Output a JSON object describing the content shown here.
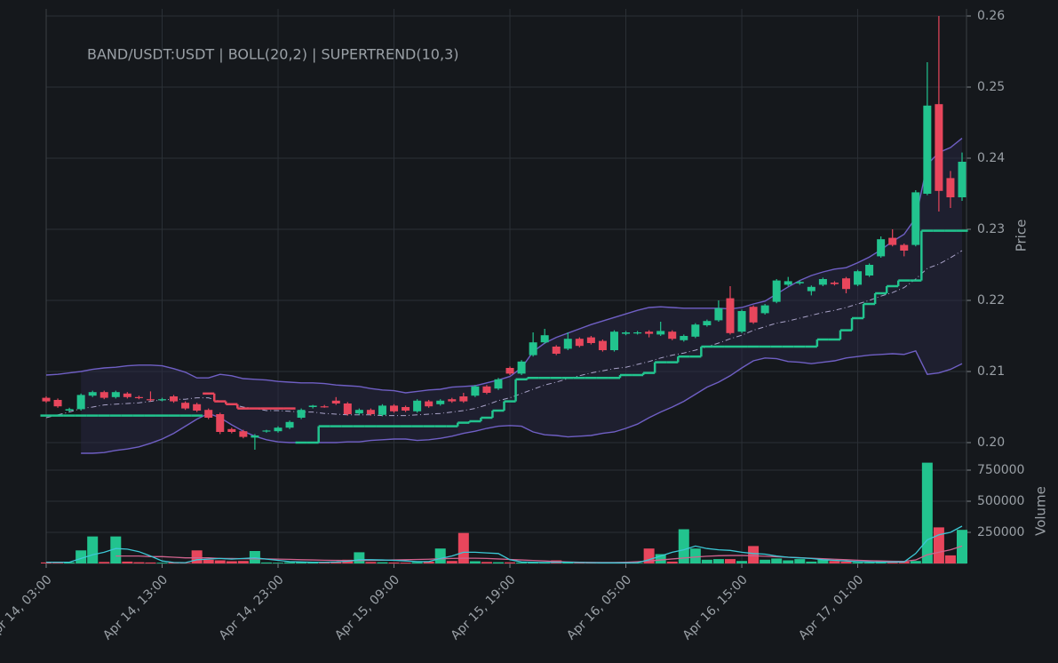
{
  "chart_data": {
    "type": "candlestick",
    "title": "BAND/USDT:USDT | BOLL(20,2) | SUPERTREND(10,3)",
    "y_label": "Price",
    "y2_label": "Volume",
    "categories": [
      "Apr 14, 03:00",
      null,
      null,
      null,
      null,
      null,
      null,
      null,
      null,
      null,
      "Apr 14, 13:00",
      null,
      null,
      null,
      null,
      null,
      null,
      null,
      null,
      null,
      "Apr 14, 23:00",
      null,
      null,
      null,
      null,
      null,
      null,
      null,
      null,
      null,
      "Apr 15, 09:00",
      null,
      null,
      null,
      null,
      null,
      null,
      null,
      null,
      null,
      "Apr 15, 19:00",
      null,
      null,
      null,
      null,
      null,
      null,
      null,
      null,
      null,
      "Apr 16, 05:00",
      null,
      null,
      null,
      null,
      null,
      null,
      null,
      null,
      null,
      "Apr 16, 15:00",
      null,
      null,
      null,
      null,
      null,
      null,
      null,
      null,
      null,
      "Apr 17, 01:00",
      null,
      null,
      null,
      null,
      null,
      null,
      null,
      null,
      null
    ],
    "open": [
      0.2063,
      0.206,
      0.2045,
      0.2047,
      0.2066,
      0.2071,
      0.2064,
      0.2069,
      0.2064,
      0.2061,
      0.206,
      0.2065,
      0.2056,
      0.2054,
      0.2046,
      0.204,
      0.2019,
      0.2016,
      0.2007,
      0.2016,
      0.2016,
      0.2021,
      0.2035,
      0.205,
      0.2051,
      0.2059,
      0.2055,
      0.2041,
      0.2046,
      0.2039,
      0.2052,
      0.205,
      0.2044,
      0.2058,
      0.2054,
      0.2061,
      0.2065,
      0.2066,
      0.2079,
      0.2076,
      0.2105,
      0.2097,
      0.2123,
      0.2141,
      0.2135,
      0.2132,
      0.2146,
      0.2148,
      0.2143,
      0.213,
      0.2153,
      0.2154,
      0.2156,
      0.2152,
      0.2156,
      0.2144,
      0.2149,
      0.2165,
      0.2172,
      0.2203,
      0.2156,
      0.2191,
      0.2182,
      0.2198,
      0.2222,
      0.2224,
      0.2213,
      0.2222,
      0.2225,
      0.2231,
      0.2222,
      0.2235,
      0.2262,
      0.2288,
      0.2278,
      0.2278,
      0.235,
      0.2476,
      0.2372,
      0.2345
    ],
    "high": [
      0.2065,
      0.2062,
      0.2049,
      0.2069,
      0.2073,
      0.2073,
      0.2073,
      0.2071,
      0.2066,
      0.2072,
      0.2063,
      0.2067,
      0.2058,
      0.2056,
      0.2048,
      0.2042,
      0.2021,
      0.2018,
      0.2012,
      0.2018,
      0.2023,
      0.2031,
      0.2048,
      0.2053,
      0.2053,
      0.2064,
      0.2057,
      0.2048,
      0.2048,
      0.2054,
      0.2054,
      0.2052,
      0.2061,
      0.206,
      0.2061,
      0.2063,
      0.207,
      0.2081,
      0.2081,
      0.2091,
      0.2107,
      0.2116,
      0.2155,
      0.216,
      0.2137,
      0.2155,
      0.2148,
      0.215,
      0.2145,
      0.2158,
      0.2157,
      0.2157,
      0.2158,
      0.217,
      0.2158,
      0.2152,
      0.2168,
      0.2173,
      0.22,
      0.222,
      0.2187,
      0.2193,
      0.2195,
      0.223,
      0.2233,
      0.2228,
      0.2221,
      0.2232,
      0.2227,
      0.2233,
      0.2243,
      0.2252,
      0.229,
      0.23,
      0.228,
      0.2355,
      0.2535,
      0.26,
      0.2382,
      0.2408
    ],
    "low": [
      0.2056,
      0.2049,
      0.2043,
      0.2045,
      0.2064,
      0.2061,
      0.2062,
      0.2062,
      0.2061,
      0.2058,
      0.2058,
      0.2056,
      0.2046,
      0.2043,
      0.2033,
      0.2012,
      0.2013,
      0.2006,
      0.199,
      0.2014,
      0.2014,
      0.2019,
      0.2033,
      0.2048,
      0.2049,
      0.2053,
      0.2038,
      0.2039,
      0.2038,
      0.2037,
      0.2042,
      0.2043,
      0.2042,
      0.2049,
      0.2052,
      0.2056,
      0.2056,
      0.2064,
      0.2068,
      0.2074,
      0.2095,
      0.2095,
      0.2121,
      0.2139,
      0.2123,
      0.213,
      0.2134,
      0.2138,
      0.2128,
      0.2128,
      0.2151,
      0.2152,
      0.2148,
      0.215,
      0.2144,
      0.2142,
      0.2147,
      0.2163,
      0.217,
      0.2152,
      0.2154,
      0.2167,
      0.218,
      0.2196,
      0.222,
      0.2222,
      0.2207,
      0.222,
      0.2221,
      0.221,
      0.222,
      0.2233,
      0.226,
      0.2276,
      0.2262,
      0.2276,
      0.2348,
      0.2325,
      0.233,
      0.234
    ],
    "close": [
      0.2058,
      0.2051,
      0.2047,
      0.2067,
      0.2071,
      0.2063,
      0.2071,
      0.2064,
      0.2063,
      0.206,
      0.2061,
      0.2058,
      0.2048,
      0.2045,
      0.2035,
      0.2015,
      0.2015,
      0.2008,
      0.201,
      0.2017,
      0.2021,
      0.2029,
      0.2046,
      0.2052,
      0.205,
      0.2055,
      0.204,
      0.2046,
      0.204,
      0.2052,
      0.2044,
      0.2045,
      0.2059,
      0.2051,
      0.2059,
      0.2058,
      0.2058,
      0.2079,
      0.207,
      0.2089,
      0.2097,
      0.2114,
      0.2141,
      0.2151,
      0.2125,
      0.2146,
      0.2136,
      0.214,
      0.213,
      0.2156,
      0.2155,
      0.2155,
      0.2153,
      0.2157,
      0.2146,
      0.215,
      0.2166,
      0.2171,
      0.2189,
      0.2154,
      0.2185,
      0.2169,
      0.2193,
      0.2228,
      0.2227,
      0.2226,
      0.2219,
      0.223,
      0.2223,
      0.2216,
      0.2241,
      0.225,
      0.2286,
      0.2278,
      0.227,
      0.2352,
      0.2474,
      0.2354,
      0.2345,
      0.2395
    ],
    "up_color": "#22c38e",
    "down_color": "#e8465c",
    "ylim": [
      0.19825,
      0.261
    ],
    "yticks": [
      {
        "value": 0.2,
        "label": "0.20"
      },
      0.21,
      0.22,
      0.23,
      0.24,
      0.25,
      0.26
    ],
    "grid": true,
    "bollinger": {
      "color": "#6f5fc4",
      "middle_color": "#a9a3c8",
      "fill": "#2a2747",
      "upper": [
        0.2095,
        0.2096,
        0.2098,
        0.21,
        0.2103,
        0.2105,
        0.2106,
        0.2108,
        0.2109,
        0.2109,
        0.2108,
        0.2104,
        0.2099,
        0.2091,
        0.2091,
        0.2096,
        0.2094,
        0.209,
        0.2089,
        0.2088,
        0.2086,
        0.2085,
        0.2084,
        0.2084,
        0.2083,
        0.2081,
        0.208,
        0.2079,
        0.2076,
        0.2074,
        0.2073,
        0.207,
        0.2072,
        0.2074,
        0.2075,
        0.2078,
        0.2079,
        0.208,
        0.2084,
        0.2088,
        0.2093,
        0.2105,
        0.2128,
        0.214,
        0.2148,
        0.2154,
        0.216,
        0.2166,
        0.2171,
        0.2176,
        0.2181,
        0.2186,
        0.219,
        0.2191,
        0.219,
        0.2189,
        0.2189,
        0.2189,
        0.2189,
        0.2188,
        0.219,
        0.2195,
        0.2199,
        0.2209,
        0.2219,
        0.2228,
        0.2235,
        0.224,
        0.2244,
        0.2246,
        0.2253,
        0.2261,
        0.2271,
        0.2283,
        0.2293,
        0.2316,
        0.2391,
        0.2408,
        0.2415,
        0.2428
      ],
      "middle": [
        0.2035,
        0.2039,
        0.2043,
        0.2048,
        0.205,
        0.2053,
        0.2054,
        0.2055,
        0.2056,
        0.2058,
        0.206,
        0.2061,
        0.2061,
        0.2063,
        0.2063,
        0.2058,
        0.2054,
        0.205,
        0.2048,
        0.2045,
        0.2045,
        0.2044,
        0.2043,
        0.2043,
        0.2041,
        0.204,
        0.2039,
        0.2039,
        0.2039,
        0.2038,
        0.2038,
        0.2038,
        0.2039,
        0.204,
        0.2041,
        0.2043,
        0.2045,
        0.2048,
        0.2053,
        0.2059,
        0.2063,
        0.2069,
        0.2075,
        0.2081,
        0.2085,
        0.209,
        0.2094,
        0.2098,
        0.2101,
        0.2104,
        0.2106,
        0.211,
        0.2114,
        0.2119,
        0.2123,
        0.2126,
        0.213,
        0.2135,
        0.214,
        0.2146,
        0.2151,
        0.2158,
        0.2163,
        0.2168,
        0.2171,
        0.2175,
        0.2179,
        0.2183,
        0.2186,
        0.219,
        0.2195,
        0.22,
        0.2206,
        0.2211,
        0.2218,
        0.223,
        0.2245,
        0.2251,
        0.226,
        0.227
      ],
      "lower": [
        null,
        null,
        null,
        0.1985,
        0.1985,
        0.1986,
        0.1989,
        0.1991,
        0.1994,
        0.1999,
        0.2005,
        0.2013,
        0.2023,
        0.2033,
        0.2041,
        0.2035,
        0.2025,
        0.2016,
        0.2009,
        0.2004,
        0.2001,
        0.2,
        0.2,
        0.2,
        0.2,
        0.2,
        0.2001,
        0.2001,
        0.2003,
        0.2004,
        0.2005,
        0.2005,
        0.2003,
        0.2004,
        0.2006,
        0.2009,
        0.2013,
        0.2016,
        0.202,
        0.2023,
        0.2024,
        0.2023,
        0.2015,
        0.2011,
        0.201,
        0.2008,
        0.2009,
        0.201,
        0.2013,
        0.2015,
        0.202,
        0.2026,
        0.2035,
        0.2043,
        0.205,
        0.2058,
        0.2068,
        0.2078,
        0.2085,
        0.2094,
        0.2105,
        0.2115,
        0.2119,
        0.2118,
        0.2114,
        0.2113,
        0.2111,
        0.2113,
        0.2115,
        0.2119,
        0.2121,
        0.2123,
        0.2124,
        0.2125,
        0.2124,
        0.2129,
        0.2096,
        0.2098,
        0.2103,
        0.2111
      ]
    },
    "supertrend": {
      "up_color": "#22c38e",
      "down_color": "#e8465c",
      "up": [
        0.2038,
        0.2038,
        0.2038,
        0.2038,
        0.2038,
        0.2038,
        0.2038,
        0.2038,
        0.2038,
        0.2038,
        0.2038,
        0.2038,
        0.2038,
        0.2038,
        null,
        null,
        null,
        null,
        null,
        null,
        null,
        null,
        0.2,
        0.2,
        0.2023,
        0.2023,
        0.2023,
        0.2023,
        0.2023,
        0.2023,
        0.2023,
        0.2023,
        0.2023,
        0.2023,
        0.2023,
        0.2023,
        0.2028,
        0.203,
        0.2035,
        0.2045,
        0.2058,
        0.2089,
        0.2091,
        0.2091,
        0.2091,
        0.2091,
        0.2091,
        0.2091,
        0.2091,
        0.2091,
        0.2095,
        0.2095,
        0.2098,
        0.2113,
        0.2113,
        0.2121,
        0.2121,
        0.2135,
        0.2135,
        0.2135,
        0.2135,
        0.2135,
        0.2135,
        0.2135,
        0.2135,
        0.2135,
        0.2135,
        0.2145,
        0.2145,
        0.2158,
        0.2175,
        0.2195,
        0.221,
        0.222,
        0.2228,
        0.2228,
        0.2298,
        0.2298,
        0.2298,
        0.2298
      ],
      "down": [
        null,
        null,
        null,
        null,
        null,
        null,
        null,
        null,
        null,
        null,
        null,
        null,
        null,
        null,
        0.2069,
        0.2058,
        0.2054,
        0.2048,
        0.2048,
        0.2048,
        0.2048,
        0.2048,
        null,
        null,
        null,
        null,
        null,
        null,
        null,
        null,
        null,
        null,
        null,
        null,
        null,
        null,
        null,
        null,
        null,
        null,
        null,
        null,
        null,
        null,
        null,
        null,
        null,
        null,
        null,
        null,
        null,
        null,
        null,
        null,
        null,
        null,
        null,
        null,
        null,
        null,
        null,
        null,
        null,
        null,
        null,
        null,
        null,
        null,
        null,
        null,
        null,
        null,
        null,
        null,
        null,
        null,
        null,
        null,
        null,
        null
      ]
    },
    "volume": {
      "ylim": [
        0,
        850000
      ],
      "yticks": [
        250000,
        500000,
        750000
      ],
      "values": [
        8000,
        6000,
        10000,
        105000,
        217000,
        12000,
        217000,
        15000,
        10000,
        8000,
        6000,
        9000,
        5000,
        105000,
        30000,
        25000,
        18000,
        20000,
        100000,
        8000,
        6000,
        10000,
        12000,
        9000,
        7000,
        15000,
        30000,
        90000,
        12000,
        10000,
        8000,
        7000,
        10000,
        15000,
        120000,
        20000,
        245000,
        18000,
        12000,
        10000,
        9000,
        8000,
        10000,
        6000,
        25000,
        8000,
        5000,
        4000,
        6000,
        5000,
        4000,
        5000,
        120000,
        75000,
        15000,
        275000,
        120000,
        30000,
        35000,
        35000,
        20000,
        140000,
        30000,
        40000,
        25000,
        35000,
        15000,
        30000,
        20000,
        15000,
        10000,
        8000,
        20000,
        12000,
        15000,
        20000,
        810000,
        290000,
        65000,
        270000
      ],
      "fast_color": "#3cc8d6",
      "slow_color": "#d0638e",
      "fast": [
        10000,
        10000,
        10000,
        40000,
        70000,
        90000,
        120000,
        115000,
        95000,
        60000,
        20000,
        8000,
        6000,
        30000,
        35000,
        40000,
        35000,
        40000,
        45000,
        35000,
        25000,
        15000,
        12000,
        10000,
        10000,
        12000,
        18000,
        30000,
        30000,
        28000,
        25000,
        20000,
        15000,
        15000,
        40000,
        60000,
        90000,
        90000,
        85000,
        80000,
        30000,
        12000,
        10000,
        8000,
        10000,
        10000,
        8000,
        6000,
        5000,
        5000,
        5000,
        6000,
        30000,
        60000,
        90000,
        110000,
        140000,
        120000,
        110000,
        105000,
        90000,
        80000,
        75000,
        60000,
        50000,
        45000,
        40000,
        30000,
        25000,
        20000,
        15000,
        12000,
        10000,
        12000,
        12000,
        80000,
        190000,
        230000,
        250000,
        300000
      ],
      "slow": [
        null,
        null,
        null,
        null,
        null,
        null,
        60000,
        60000,
        60000,
        55000,
        55000,
        50000,
        45000,
        45000,
        45000,
        40000,
        40000,
        38000,
        38000,
        36000,
        35000,
        33000,
        30000,
        28000,
        26000,
        25000,
        24000,
        24000,
        25000,
        26000,
        28000,
        30000,
        32000,
        34000,
        38000,
        40000,
        42000,
        42000,
        40000,
        36000,
        32000,
        28000,
        24000,
        20000,
        16000,
        12000,
        10000,
        9000,
        8000,
        8000,
        10000,
        14000,
        20000,
        28000,
        36000,
        44000,
        52000,
        58000,
        62000,
        64000,
        64000,
        62000,
        58000,
        54000,
        50000,
        46000,
        42000,
        38000,
        34000,
        30000,
        26000,
        22000,
        20000,
        18000,
        17000,
        28000,
        70000,
        90000,
        110000,
        140000
      ]
    }
  }
}
